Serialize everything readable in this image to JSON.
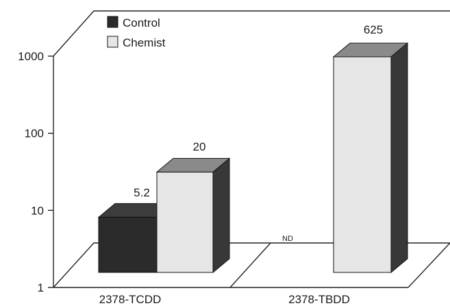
{
  "chart_data": {
    "type": "bar",
    "scale": "log",
    "ylim": [
      1,
      1000
    ],
    "yticks": [
      1,
      10,
      100,
      1000
    ],
    "ytick_labels": [
      "1",
      "10",
      "100",
      "1000"
    ],
    "categories": [
      "2378-TCDD",
      "2378-TBDD"
    ],
    "series": [
      {
        "name": "Control",
        "values": [
          5.2,
          null
        ],
        "value_labels": [
          "",
          "ND"
        ]
      },
      {
        "name": "Chemist",
        "values": [
          20,
          625
        ],
        "value_labels": [
          "20",
          "625"
        ]
      }
    ],
    "annotations": [
      "5.2"
    ],
    "legend_position": "top-left"
  },
  "colors": {
    "control_front": "#2b2b2b",
    "control_top": "#3c3c3c",
    "control_side": "#1a1a1a",
    "chemist_front": "#e6e6e6",
    "chemist_top": "#8a8a8a",
    "chemist_side": "#383838"
  }
}
